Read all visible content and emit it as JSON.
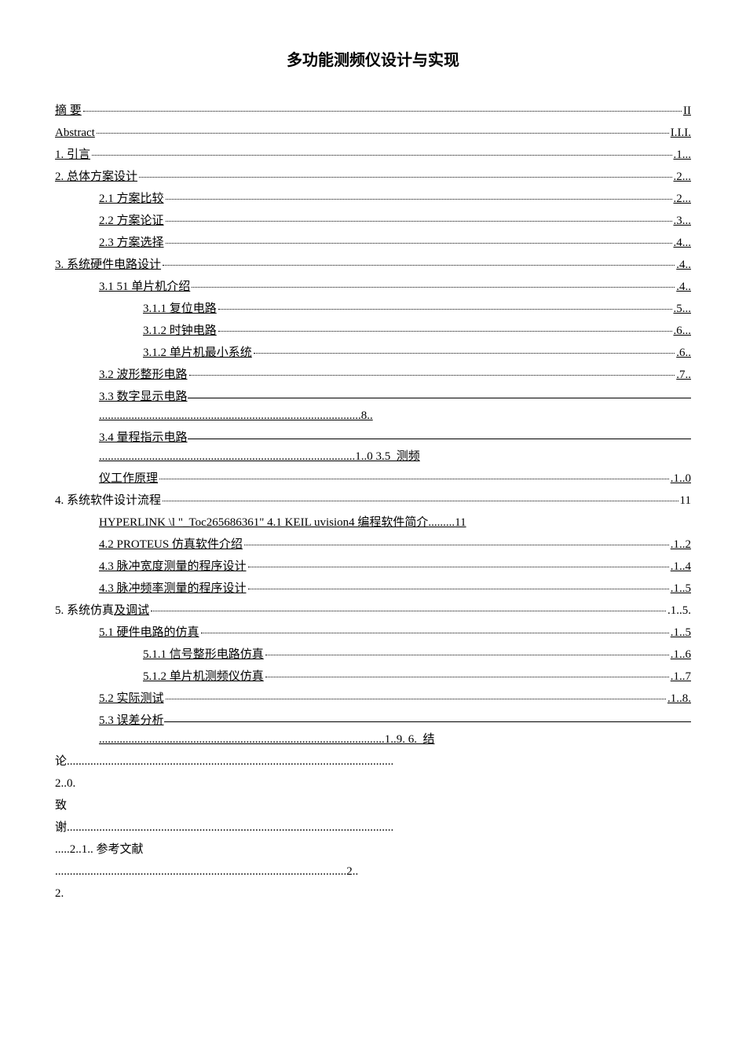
{
  "title": "多功能测频仪设计与实现",
  "toc": {
    "entries": [
      {
        "label": "摘  要",
        "page": "II",
        "indent": 0,
        "underline": true
      },
      {
        "label": "Abstract",
        "page": "I.I.I.",
        "indent": 0,
        "underline": true
      },
      {
        "label": "1.  引言",
        "page": ".1...",
        "indent": 0,
        "underline": true
      },
      {
        "label": "2.  总体方案设计",
        "page": ".2...",
        "indent": 0,
        "underline": true
      },
      {
        "label": "2.1  方案比较",
        "page": ".2...",
        "indent": 1,
        "underline": true
      },
      {
        "label": "2.2  方案论证",
        "page": ".3...",
        "indent": 1,
        "underline": true
      },
      {
        "label": "2.3  方案选择",
        "page": ".4...",
        "indent": 1,
        "underline": true
      },
      {
        "label": "3.  系统硬件电路设计",
        "page": ".4..",
        "indent": 0,
        "underline": true
      },
      {
        "label": "3.1 51 单片机介绍",
        "page": ".4..",
        "indent": 1,
        "underline": true
      },
      {
        "label": "3.1.1  复位电路",
        "page": ".5...",
        "indent": 2,
        "underline": true
      },
      {
        "label": "3.1.2  时钟电路",
        "page": ".6...",
        "indent": 2,
        "underline": true
      },
      {
        "label": "3.1.2  单片机最小系统",
        "page": ".6..",
        "indent": 2,
        "underline": true
      },
      {
        "label": "3.2  波形整形电路",
        "page": ".7..",
        "indent": 1,
        "underline": true
      }
    ],
    "block33": {
      "label": "3.3  数字显示电路",
      "line2": ".........................................................................................8.."
    },
    "block34": {
      "label": "3.4  量程指示电路",
      "line2": ".......................................................................................1..0 3.5  测频"
    },
    "entries2": [
      {
        "label": "仪工作原理",
        "page": ".1..0",
        "indent": 1,
        "underline": true
      },
      {
        "label": "4.  系统软件设计流程",
        "page": " 11",
        "indent": 0,
        "underline": false
      },
      {
        "label": " HYPERLINK \\l \"_Toc265686361\" 4.1 KEIL uvision4   编程软件简介",
        "page": " 11",
        "indent": 1,
        "underline": true,
        "nodots": true
      },
      {
        "label": "4.2 PROTEUS 仿真软件介绍",
        "page": ".1..2",
        "indent": 1,
        "underline": true
      },
      {
        "label": "4.3  脉冲宽度测量的程序设计  ",
        "page": ".1..4",
        "indent": 1,
        "underline": true
      },
      {
        "label": "4.3  脉冲频率测量的程序设计  ",
        "page": ".1..5",
        "indent": 1,
        "underline": true
      },
      {
        "label": "5.  系统仿真及调试",
        "page": ".1..5.",
        "indent": 0,
        "underline": false,
        "partialUnderlineStart": 8
      },
      {
        "label": "5.1  硬件电路的仿真  ",
        "page": ".1..5",
        "indent": 1,
        "underline": true
      },
      {
        "label": " 5.1.1  信号整形电路仿真  ",
        "page": ".1..6",
        "indent": 2,
        "underline": true
      },
      {
        "label": " 5.1.2  单片机测频仪仿真  ",
        "page": ".1..7",
        "indent": 2,
        "underline": true
      },
      {
        "label": " 5.2  实际测试",
        "page": ".1..8.",
        "indent": 1,
        "underline": true
      }
    ],
    "block53": {
      "label": "5.3  误差分析",
      "line2": ".................................................................................................1..9. 6.  结"
    },
    "tail": [
      "论...............................................................................................................",
      "2..0.",
      "          致",
      "谢...............................................................................................................",
      ".....2..1.. 参考文献",
      "...................................................................................................2..",
      "2."
    ]
  }
}
